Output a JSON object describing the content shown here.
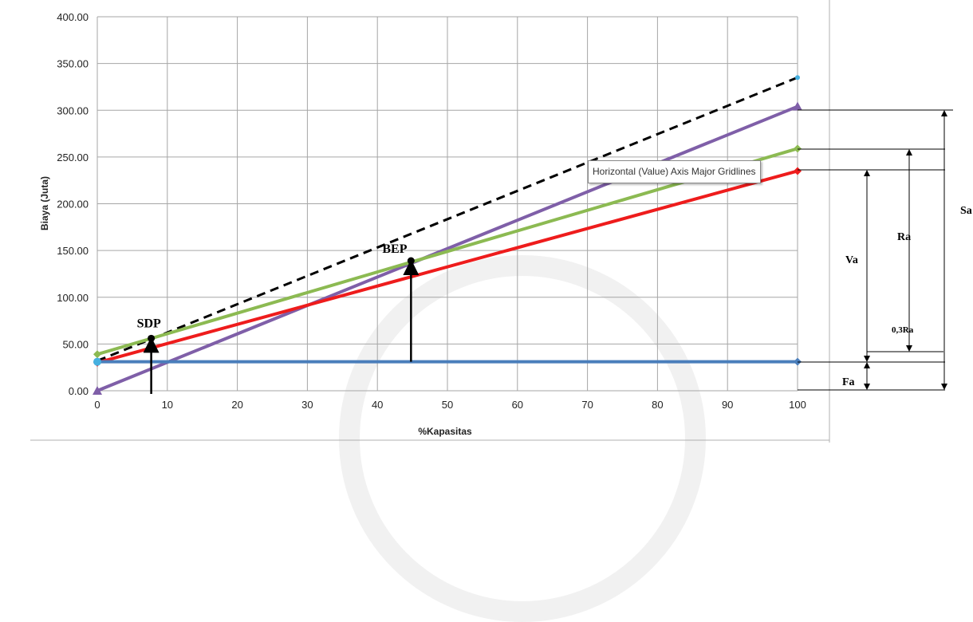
{
  "chart_data": {
    "type": "line",
    "xlabel": "%Kapasitas",
    "ylabel": "Biaya (Juta)",
    "x_ticks": [
      0,
      10,
      20,
      30,
      40,
      50,
      60,
      70,
      80,
      90,
      100
    ],
    "y_ticks": [
      "0.00",
      "50.00",
      "100.00",
      "150.00",
      "200.00",
      "250.00",
      "300.00",
      "350.00",
      "400.00"
    ],
    "xlim": [
      0,
      100
    ],
    "ylim": [
      0,
      400
    ],
    "grid": true,
    "series": [
      {
        "key": "dashed",
        "color": "#000000",
        "dash": true,
        "x": [
          0,
          100
        ],
        "y": [
          32,
          335
        ],
        "end_color": "#45b0e0"
      },
      {
        "key": "purple",
        "color": "#7f5fa8",
        "x": [
          0,
          100
        ],
        "y": [
          0,
          304
        ],
        "marker": "triangle"
      },
      {
        "key": "green",
        "color": "#8cba52",
        "x": [
          0,
          100
        ],
        "y": [
          39,
          259
        ],
        "marker": "diamond"
      },
      {
        "key": "red",
        "color": "#ee1c1c",
        "x": [
          0,
          100
        ],
        "y": [
          30,
          235
        ],
        "marker": "diamond"
      },
      {
        "key": "blue",
        "color": "#4a7ebb",
        "x": [
          0,
          100
        ],
        "y": [
          31,
          31
        ],
        "marker": "diamond"
      }
    ],
    "points": [
      {
        "label": "SDP",
        "x": 7.7,
        "y": 56
      },
      {
        "label": "BEP",
        "x": 44.8,
        "y": 139
      }
    ],
    "annotations": {
      "sa": "Sa",
      "ra": "Ra",
      "va": "Va",
      "ra03": "0,3Ra",
      "fa": "Fa"
    },
    "tooltip": "Horizontal (Value) Axis Major Gridlines"
  }
}
